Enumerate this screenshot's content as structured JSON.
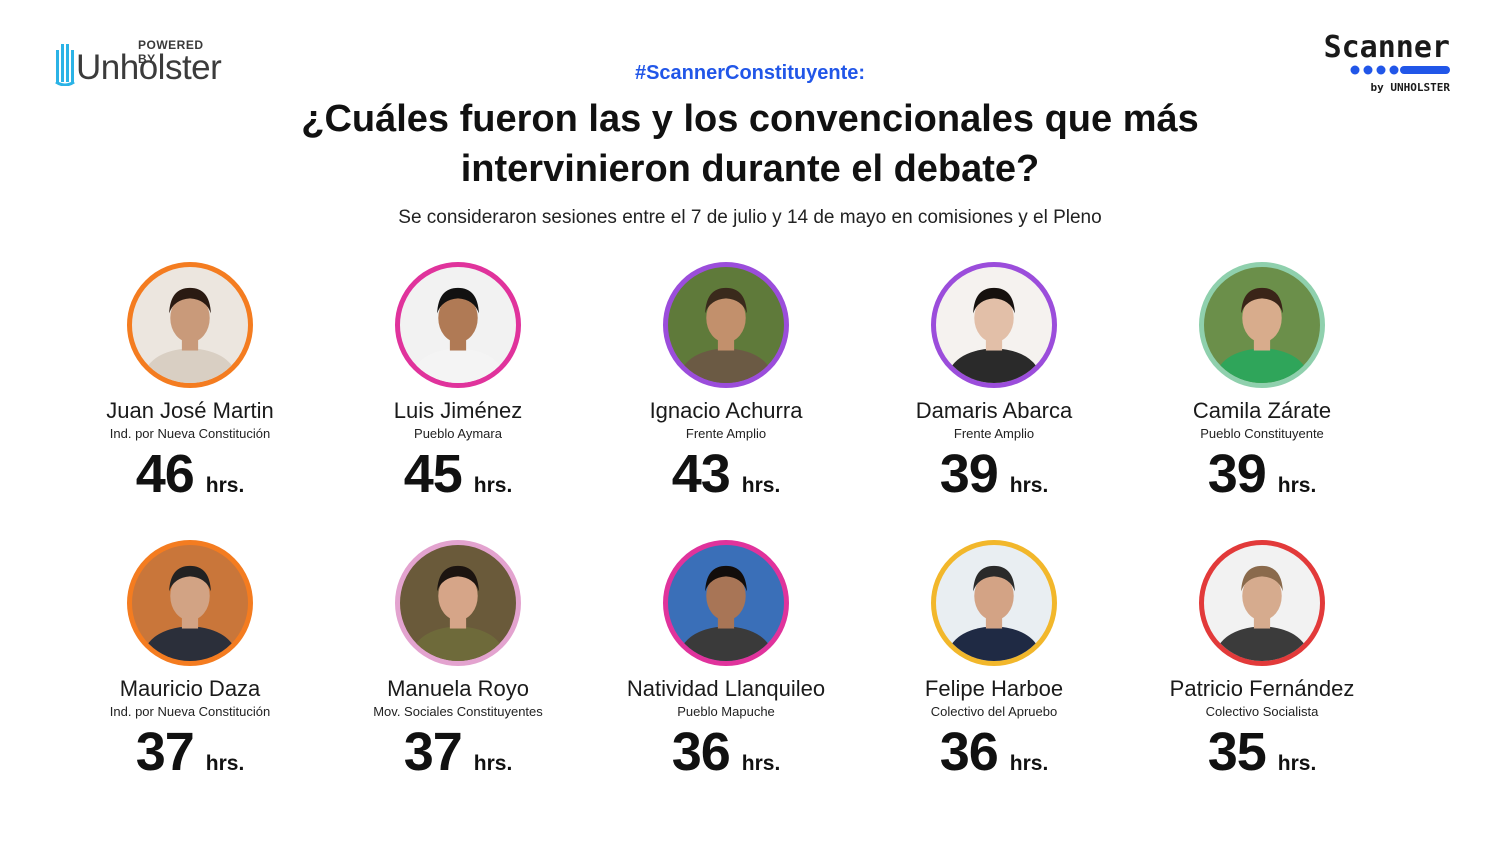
{
  "branding": {
    "powered_by": "POWERED BY",
    "unholster_logo_text": "Unholster",
    "scanner_logo_text": "Scanner",
    "scanner_by": "by UNHOLSTER"
  },
  "header": {
    "hashtag": "#ScannerConstituyente:",
    "title": "¿Cuáles fueron las y los convencionales que más intervinieron durante el debate?",
    "subtitle": "Se consideraron sesiones entre el 7 de julio y 14 de mayo en comisiones y el Pleno"
  },
  "colors": {
    "hashtag": "#2156e8",
    "scanner_dots": "#2156e8"
  },
  "unit_label": "hrs.",
  "people": [
    {
      "name": "Juan José Martin",
      "party": "Ind. por Nueva Constitución",
      "hours": "46",
      "ring_color": "#f47c20",
      "bg": "#ece6df",
      "skin": "#c99a7a",
      "hair": "#2a1a12",
      "shirt": "#d9cfc3"
    },
    {
      "name": "Luis Jiménez",
      "party": "Pueblo Aymara",
      "hours": "45",
      "ring_color": "#e0339c",
      "bg": "#f2f2f2",
      "skin": "#b07a55",
      "hair": "#111111",
      "shirt": "#f4f4f4"
    },
    {
      "name": "Ignacio Achurra",
      "party": "Frente Amplio",
      "hours": "43",
      "ring_color": "#9b4ddb",
      "bg": "#5f7a3a",
      "skin": "#c2906c",
      "hair": "#3a2a1c",
      "shirt": "#6b5a44"
    },
    {
      "name": "Damaris Abarca",
      "party": "Frente Amplio",
      "hours": "39",
      "ring_color": "#9b4ddb",
      "bg": "#f5f2ef",
      "skin": "#e2bfa8",
      "hair": "#16110e",
      "shirt": "#2a2a2a"
    },
    {
      "name": "Camila Zárate",
      "party": "Pueblo Constituyente",
      "hours": "39",
      "ring_color": "#8fd0ad",
      "bg": "#6b8f4a",
      "skin": "#d8ac8c",
      "hair": "#3a2418",
      "shirt": "#2fa55a"
    },
    {
      "name": "Mauricio Daza",
      "party": "Ind. por Nueva Constitución",
      "hours": "37",
      "ring_color": "#f47c20",
      "bg": "#c9763a",
      "skin": "#d2a384",
      "hair": "#222222",
      "shirt": "#2b2f3a"
    },
    {
      "name": "Manuela Royo",
      "party": "Mov. Sociales Constituyentes",
      "hours": "37",
      "ring_color": "#e3a3cf",
      "bg": "#6a5a3a",
      "skin": "#d6a588",
      "hair": "#1c1410",
      "shirt": "#6e6a3a"
    },
    {
      "name": "Natividad Llanquileo",
      "party": "Pueblo Mapuche",
      "hours": "36",
      "ring_color": "#e0339c",
      "bg": "#3a6fb8",
      "skin": "#a87556",
      "hair": "#120d0b",
      "shirt": "#3a3a3a"
    },
    {
      "name": "Felipe Harboe",
      "party": "Colectivo del Apruebo",
      "hours": "36",
      "ring_color": "#f2b72b",
      "bg": "#e9eef2",
      "skin": "#d3a385",
      "hair": "#2a2a2a",
      "shirt": "#1f2a44"
    },
    {
      "name": "Patricio Fernández",
      "party": "Colectivo Socialista",
      "hours": "35",
      "ring_color": "#e23a3a",
      "bg": "#f2f2f2",
      "skin": "#d6ab8e",
      "hair": "#8a6a4c",
      "shirt": "#3b3b3b"
    }
  ]
}
